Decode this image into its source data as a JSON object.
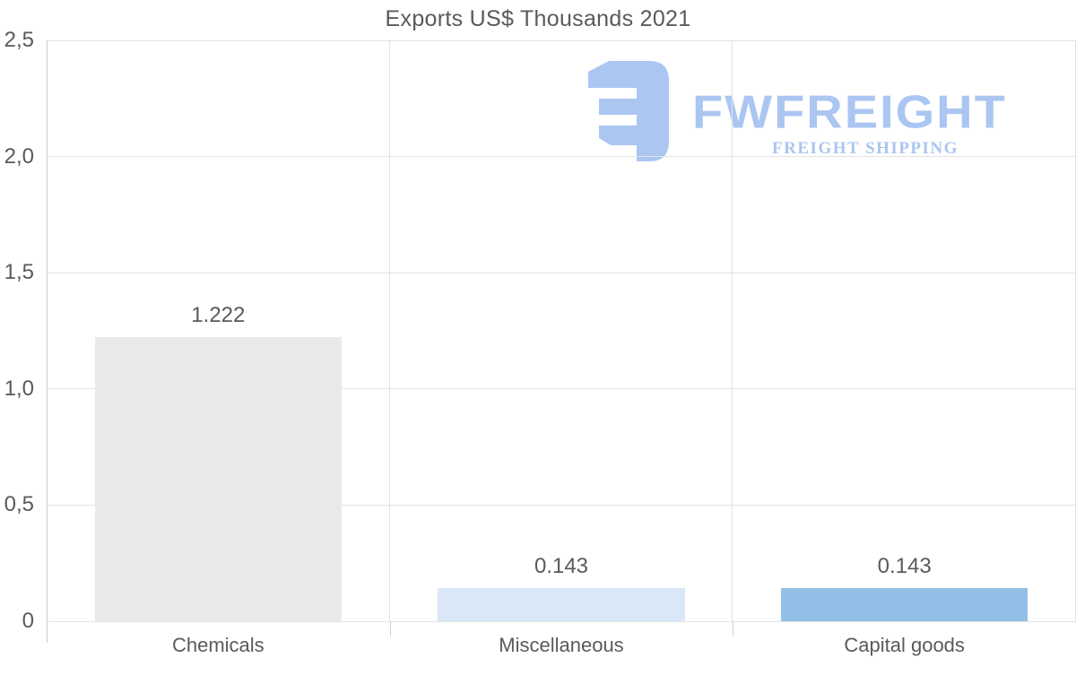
{
  "title": "Exports US$ Thousands 2021",
  "logo": {
    "name": "FWFREIGHT",
    "tagline": "FREIGHT SHIPPING",
    "color": "#a6c3f1"
  },
  "colors": {
    "text": "#5a5a5a",
    "gridline": "#e3e3e3",
    "axis": "#cfcfcf"
  },
  "chart_data": {
    "type": "bar",
    "title": "Exports US$ Thousands 2021",
    "categories": [
      "Chemicals",
      "Miscellaneous",
      "Capital goods"
    ],
    "values": [
      1.222,
      0.143,
      0.143
    ],
    "value_labels": [
      "1.222",
      "0.143",
      "0.143"
    ],
    "bar_colors": [
      "#e9e9e9",
      "#d9e7f8",
      "#92bfe6"
    ],
    "xlabel": "",
    "ylabel": "",
    "ylim": [
      0,
      2.5
    ],
    "yticks": [
      0,
      0.5,
      1.0,
      1.5,
      2.0,
      2.5
    ],
    "ytick_labels": [
      "0",
      "0,5",
      "1,0",
      "1,5",
      "2,0",
      "2,5"
    ],
    "grid": true,
    "legend": false
  }
}
